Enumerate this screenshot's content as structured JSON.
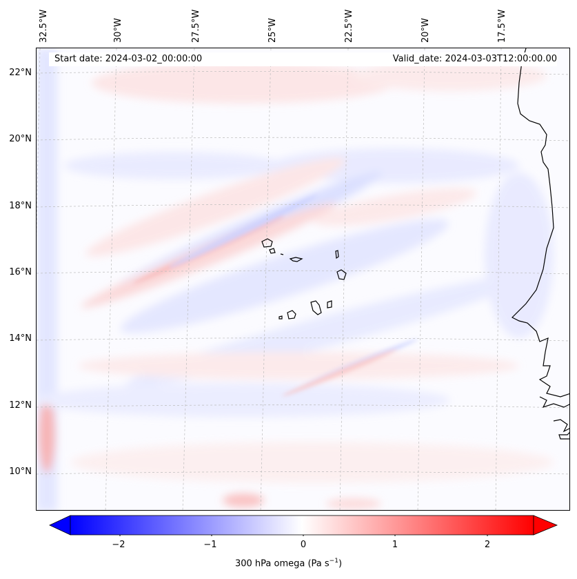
{
  "header": {
    "start_date": "Start date: 2024-03-02_00:00:00",
    "valid_date": "Valid_date: 2024-03-03T12:00:00.00"
  },
  "map": {
    "lon_labels": [
      "32.5°W",
      "30°W",
      "27.5°W",
      "25°W",
      "22.5°W",
      "20°W",
      "17.5°W"
    ],
    "lat_labels": [
      "22°N",
      "20°N",
      "18°N",
      "16°N",
      "14°N",
      "12°N",
      "10°N"
    ],
    "coastline_color": "#000000",
    "gridline_color": "#bbbbbb"
  },
  "colorbar": {
    "ticks": [
      "−2",
      "−1",
      "0",
      "1",
      "2"
    ],
    "label_text": "300 hPa omega (Pa s",
    "label_exponent": "−1",
    "label_close": ")",
    "colors": {
      "min": "#0000ff",
      "mid": "#ffffff",
      "max": "#ff0000"
    }
  }
}
